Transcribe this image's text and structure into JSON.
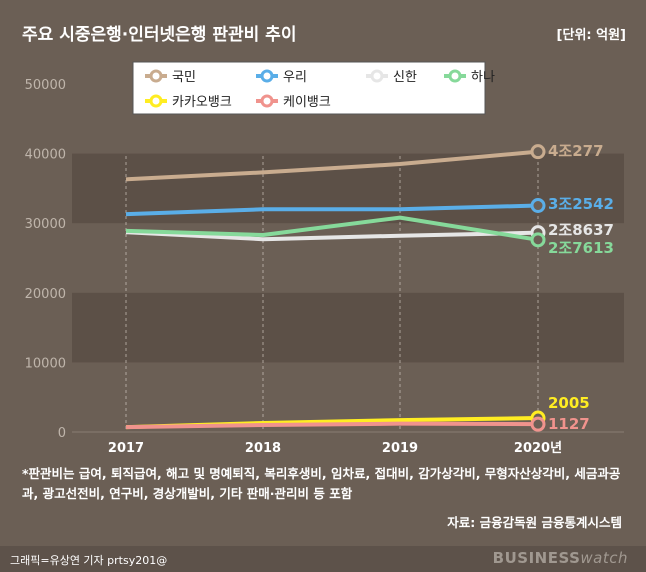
{
  "title": "주요 시중은행·인터넷은행 판관비 추이",
  "unit": "[단위: 억원]",
  "note": "*판관비는 급여, 퇴직급여, 해고 및 명예퇴직, 복리후생비, 임차료, 접대비, 감가상각비, 무형자산상각비, 세금과공과, 광고선전비, 연구비, 경상개발비, 기타 판매·관리비 등 포함",
  "source": "자료: 금융감독원 금융통계시스템",
  "credit": "그래픽=유상연 기자 prtsy201@",
  "brand_a": "BUSINESS",
  "brand_b": "watch",
  "chart_data": {
    "type": "line",
    "categories": [
      "2017",
      "2018",
      "2019",
      "2020년"
    ],
    "ylim": [
      0,
      50000
    ],
    "yticks": [
      0,
      10000,
      20000,
      30000,
      40000,
      50000
    ],
    "grid": "alternating horizontal bands, dashed vertical lines",
    "legend_position": "top-left",
    "series": [
      {
        "name": "국민",
        "color": "#c9ac8f",
        "values": [
          36300,
          37300,
          38500,
          40277
        ],
        "end_label": "4조277"
      },
      {
        "name": "우리",
        "color": "#5aaee8",
        "values": [
          31300,
          32000,
          32000,
          32542
        ],
        "end_label": "3조2542"
      },
      {
        "name": "신한",
        "color": "#e6e6e6",
        "values": [
          28700,
          27700,
          28200,
          28637
        ],
        "end_label": "2조8637"
      },
      {
        "name": "하나",
        "color": "#86d99a",
        "values": [
          28900,
          28300,
          30800,
          27613
        ],
        "end_label": "2조7613"
      },
      {
        "name": "카카오뱅크",
        "color": "#ffed22",
        "values": [
          700,
          1300,
          1700,
          2005
        ],
        "end_label": "2005"
      },
      {
        "name": "케이뱅크",
        "color": "#f0938d",
        "values": [
          700,
          1000,
          1200,
          1127
        ],
        "end_label": "1127"
      }
    ]
  }
}
